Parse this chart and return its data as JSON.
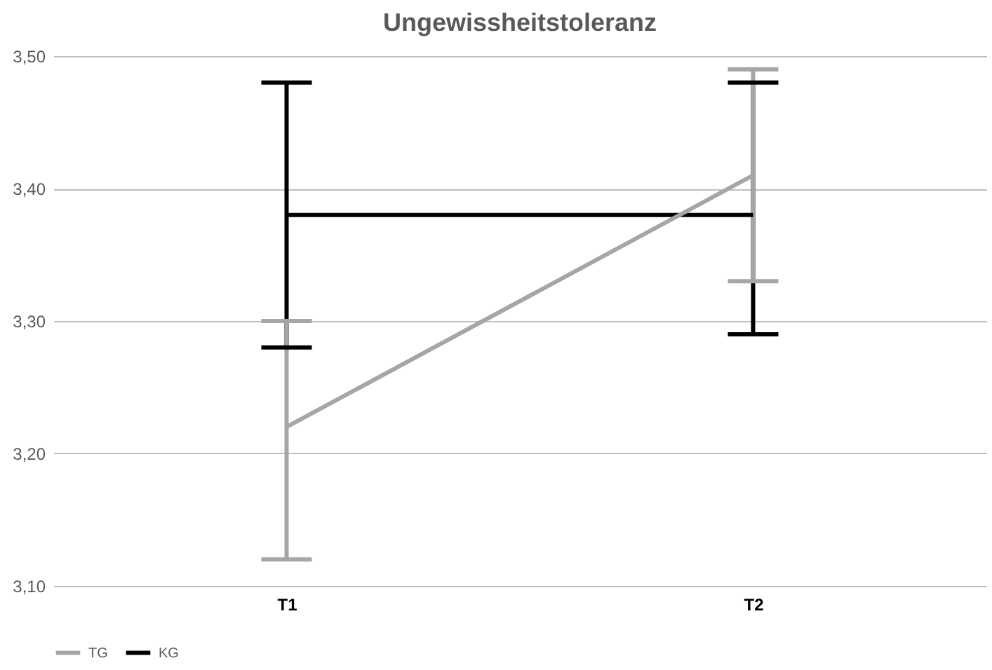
{
  "chart_data": {
    "type": "line",
    "title": "Ungewissheitstoleranz",
    "categories": [
      "T1",
      "T2"
    ],
    "series": [
      {
        "name": "TG",
        "color": "#a6a6a6",
        "values": [
          3.22,
          3.41
        ],
        "errors": [
          [
            3.12,
            3.3
          ],
          [
            3.33,
            3.49
          ]
        ]
      },
      {
        "name": "KG",
        "color": "#000000",
        "values": [
          3.38,
          3.38
        ],
        "errors": [
          [
            3.28,
            3.48
          ],
          [
            3.29,
            3.48
          ]
        ]
      }
    ],
    "ylim": [
      3.1,
      3.5
    ],
    "yticks": [
      {
        "value": 3.1,
        "label": "3,10"
      },
      {
        "value": 3.2,
        "label": "3,20"
      },
      {
        "value": 3.3,
        "label": "3,30"
      },
      {
        "value": 3.4,
        "label": "3,40"
      },
      {
        "value": 3.5,
        "label": "3,50"
      }
    ],
    "grid": "y",
    "legend": "bottom"
  }
}
